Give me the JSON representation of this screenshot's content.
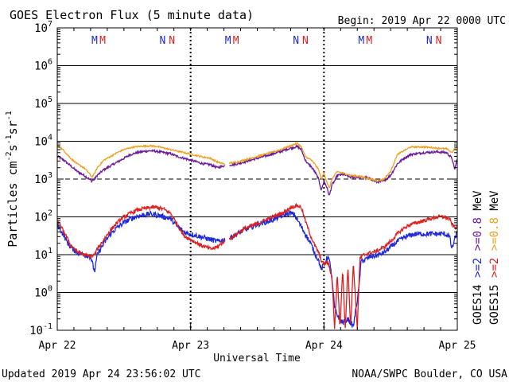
{
  "chart_data": {
    "type": "line",
    "title": "GOES Electron Flux (5 minute data)",
    "begin_label": "Begin: 2019 Apr 22 0000 UTC",
    "xlabel": "Universal Time",
    "ylabel": "Particles cm⁻²s⁻¹sr⁻¹",
    "ylabel_parts": [
      "Particles cm",
      "-2",
      "s",
      "-1",
      "sr",
      "-1"
    ],
    "yscale": "log",
    "ylim_exp": [
      -1,
      7
    ],
    "y_tick_exponents": [
      -1,
      0,
      1,
      2,
      3,
      4,
      5,
      6,
      7
    ],
    "xlim_days": [
      0,
      3
    ],
    "x_ticks": [
      {
        "day": 0,
        "label": "Apr 22"
      },
      {
        "day": 1,
        "label": "Apr 23"
      },
      {
        "day": 2,
        "label": "Apr 24"
      },
      {
        "day": 3,
        "label": "Apr 25"
      }
    ],
    "threshold_lines": [
      {
        "exp": 3,
        "style": "dashed"
      },
      {
        "exp": 2,
        "style": "solid"
      }
    ],
    "grid": true,
    "markers": [
      {
        "day": 0.28,
        "text": "M",
        "color": "#1e2adc"
      },
      {
        "day": 0.34,
        "text": "M",
        "color": "#e01e1e"
      },
      {
        "day": 0.79,
        "text": "N",
        "color": "#1e2adc"
      },
      {
        "day": 0.86,
        "text": "N",
        "color": "#e01e1e"
      },
      {
        "day": 1.28,
        "text": "M",
        "color": "#1e2adc"
      },
      {
        "day": 1.34,
        "text": "M",
        "color": "#e01e1e"
      },
      {
        "day": 1.79,
        "text": "N",
        "color": "#1e2adc"
      },
      {
        "day": 1.86,
        "text": "N",
        "color": "#e01e1e"
      },
      {
        "day": 2.28,
        "text": "M",
        "color": "#1e2adc"
      },
      {
        "day": 2.34,
        "text": "M",
        "color": "#e01e1e"
      },
      {
        "day": 2.79,
        "text": "N",
        "color": "#1e2adc"
      },
      {
        "day": 2.86,
        "text": "N",
        "color": "#e01e1e"
      }
    ],
    "legend": {
      "placement": "right",
      "rows": [
        {
          "sat": "GOES14",
          "items": [
            {
              "text": ">=2",
              "color": "#1e2adc"
            },
            {
              "text": ">=0.8",
              "color": "#6a1a9a"
            }
          ],
          "unit": "MeV"
        },
        {
          "sat": "GOES15",
          "items": [
            {
              "text": ">=2",
              "color": "#e01e1e"
            },
            {
              "text": ">=0.8",
              "color": "#f0a020"
            }
          ],
          "unit": "MeV"
        }
      ]
    },
    "series": [
      {
        "name": "GOES14 >=0.8 MeV",
        "color": "#6a1a9a",
        "noise": 0.03,
        "points": [
          [
            0,
            3.6
          ],
          [
            0.05,
            3.5
          ],
          [
            0.1,
            3.35
          ],
          [
            0.15,
            3.2
          ],
          [
            0.2,
            3.1
          ],
          [
            0.24,
            3.0
          ],
          [
            0.26,
            2.95
          ],
          [
            0.28,
            3.0
          ],
          [
            0.3,
            3.1
          ],
          [
            0.35,
            3.25
          ],
          [
            0.4,
            3.35
          ],
          [
            0.45,
            3.45
          ],
          [
            0.5,
            3.55
          ],
          [
            0.55,
            3.65
          ],
          [
            0.6,
            3.7
          ],
          [
            0.65,
            3.73
          ],
          [
            0.7,
            3.75
          ],
          [
            0.75,
            3.73
          ],
          [
            0.8,
            3.7
          ],
          [
            0.85,
            3.67
          ],
          [
            0.9,
            3.6
          ],
          [
            0.95,
            3.55
          ],
          [
            1.0,
            3.5
          ],
          [
            1.05,
            3.45
          ],
          [
            1.1,
            3.4
          ],
          [
            1.15,
            3.38
          ],
          [
            1.2,
            3.3
          ],
          [
            1.25,
            3.35
          ],
          [
            1.35,
            3.4
          ],
          [
            1.45,
            3.5
          ],
          [
            1.55,
            3.6
          ],
          [
            1.65,
            3.7
          ],
          [
            1.75,
            3.82
          ],
          [
            1.8,
            3.86
          ],
          [
            1.83,
            3.78
          ],
          [
            1.86,
            3.5
          ],
          [
            1.88,
            3.4
          ],
          [
            1.9,
            3.35
          ],
          [
            1.93,
            3.2
          ],
          [
            1.96,
            3.0
          ],
          [
            1.98,
            2.7
          ],
          [
            2.0,
            2.95
          ],
          [
            2.02,
            2.8
          ],
          [
            2.04,
            2.55
          ],
          [
            2.06,
            2.85
          ],
          [
            2.08,
            2.95
          ],
          [
            2.1,
            3.1
          ],
          [
            2.15,
            3.12
          ],
          [
            2.2,
            3.05
          ],
          [
            2.3,
            3.05
          ],
          [
            2.35,
            3.0
          ],
          [
            2.4,
            2.92
          ],
          [
            2.45,
            2.95
          ],
          [
            2.5,
            3.1
          ],
          [
            2.55,
            3.4
          ],
          [
            2.6,
            3.55
          ],
          [
            2.65,
            3.65
          ],
          [
            2.75,
            3.7
          ],
          [
            2.85,
            3.72
          ],
          [
            2.92,
            3.7
          ],
          [
            2.96,
            3.55
          ],
          [
            2.98,
            3.25
          ],
          [
            3.0,
            3.55
          ]
        ],
        "gaps": [
          [
            1.26,
            1.29
          ]
        ]
      },
      {
        "name": "GOES15 >=0.8 MeV",
        "color": "#f0a020",
        "noise": 0.02,
        "points": [
          [
            0,
            3.9
          ],
          [
            0.05,
            3.75
          ],
          [
            0.1,
            3.55
          ],
          [
            0.15,
            3.4
          ],
          [
            0.2,
            3.3
          ],
          [
            0.24,
            3.15
          ],
          [
            0.26,
            3.05
          ],
          [
            0.28,
            3.15
          ],
          [
            0.3,
            3.3
          ],
          [
            0.35,
            3.5
          ],
          [
            0.4,
            3.6
          ],
          [
            0.45,
            3.7
          ],
          [
            0.5,
            3.78
          ],
          [
            0.55,
            3.83
          ],
          [
            0.6,
            3.86
          ],
          [
            0.65,
            3.87
          ],
          [
            0.7,
            3.88
          ],
          [
            0.75,
            3.86
          ],
          [
            0.8,
            3.82
          ],
          [
            0.85,
            3.78
          ],
          [
            0.9,
            3.74
          ],
          [
            0.95,
            3.7
          ],
          [
            1.0,
            3.66
          ],
          [
            1.05,
            3.62
          ],
          [
            1.1,
            3.58
          ],
          [
            1.15,
            3.55
          ],
          [
            1.2,
            3.45
          ],
          [
            1.25,
            3.4
          ],
          [
            1.35,
            3.45
          ],
          [
            1.45,
            3.55
          ],
          [
            1.55,
            3.65
          ],
          [
            1.65,
            3.75
          ],
          [
            1.75,
            3.88
          ],
          [
            1.8,
            3.95
          ],
          [
            1.83,
            3.85
          ],
          [
            1.86,
            3.6
          ],
          [
            1.88,
            3.55
          ],
          [
            1.9,
            3.52
          ],
          [
            1.93,
            3.4
          ],
          [
            1.96,
            3.25
          ],
          [
            1.98,
            3.0
          ],
          [
            2.0,
            3.15
          ],
          [
            2.02,
            2.95
          ],
          [
            2.04,
            2.75
          ],
          [
            2.06,
            3.0
          ],
          [
            2.08,
            3.1
          ],
          [
            2.1,
            3.2
          ],
          [
            2.15,
            3.15
          ],
          [
            2.2,
            3.1
          ],
          [
            2.3,
            3.05
          ],
          [
            2.35,
            3.0
          ],
          [
            2.4,
            2.95
          ],
          [
            2.45,
            3.0
          ],
          [
            2.5,
            3.2
          ],
          [
            2.55,
            3.65
          ],
          [
            2.6,
            3.75
          ],
          [
            2.65,
            3.85
          ],
          [
            2.75,
            3.85
          ],
          [
            2.85,
            3.82
          ],
          [
            2.92,
            3.8
          ],
          [
            2.96,
            3.7
          ],
          [
            2.98,
            3.8
          ],
          [
            3.0,
            3.85
          ]
        ],
        "gaps": [
          [
            1.26,
            1.29
          ]
        ]
      },
      {
        "name": "GOES14 >=2 MeV",
        "color": "#1e2adc",
        "noise": 0.07,
        "points": [
          [
            0,
            1.8
          ],
          [
            0.05,
            1.5
          ],
          [
            0.08,
            1.3
          ],
          [
            0.1,
            1.2
          ],
          [
            0.15,
            1.05
          ],
          [
            0.2,
            1.0
          ],
          [
            0.25,
            0.95
          ],
          [
            0.28,
            0.55
          ],
          [
            0.3,
            1.0
          ],
          [
            0.35,
            1.3
          ],
          [
            0.4,
            1.55
          ],
          [
            0.45,
            1.72
          ],
          [
            0.5,
            1.85
          ],
          [
            0.55,
            1.95
          ],
          [
            0.6,
            2.02
          ],
          [
            0.65,
            2.05
          ],
          [
            0.7,
            2.08
          ],
          [
            0.75,
            2.05
          ],
          [
            0.8,
            2.0
          ],
          [
            0.85,
            1.95
          ],
          [
            0.9,
            1.75
          ],
          [
            0.95,
            1.6
          ],
          [
            1.0,
            1.55
          ],
          [
            1.05,
            1.5
          ],
          [
            1.1,
            1.45
          ],
          [
            1.15,
            1.4
          ],
          [
            1.2,
            1.35
          ],
          [
            1.25,
            1.4
          ],
          [
            1.3,
            1.45
          ],
          [
            1.35,
            1.55
          ],
          [
            1.4,
            1.65
          ],
          [
            1.45,
            1.72
          ],
          [
            1.5,
            1.8
          ],
          [
            1.55,
            1.85
          ],
          [
            1.6,
            1.9
          ],
          [
            1.65,
            1.98
          ],
          [
            1.7,
            2.05
          ],
          [
            1.75,
            2.1
          ],
          [
            1.78,
            2.05
          ],
          [
            1.82,
            1.8
          ],
          [
            1.86,
            1.55
          ],
          [
            1.9,
            1.3
          ],
          [
            1.93,
            1.05
          ],
          [
            1.96,
            0.85
          ],
          [
            1.98,
            0.6
          ],
          [
            2.0,
            0.75
          ],
          [
            2.03,
            0.95
          ],
          [
            2.05,
            0.7
          ],
          [
            2.08,
            -0.4
          ],
          [
            2.1,
            -0.6
          ],
          [
            2.14,
            -0.8
          ],
          [
            2.18,
            -0.7
          ],
          [
            2.22,
            -0.9
          ],
          [
            2.26,
            0.05
          ],
          [
            2.28,
            0.85
          ],
          [
            2.3,
            0.85
          ],
          [
            2.35,
            0.95
          ],
          [
            2.4,
            0.98
          ],
          [
            2.45,
            1.05
          ],
          [
            2.5,
            1.2
          ],
          [
            2.55,
            1.35
          ],
          [
            2.6,
            1.45
          ],
          [
            2.65,
            1.52
          ],
          [
            2.7,
            1.55
          ],
          [
            2.75,
            1.55
          ],
          [
            2.8,
            1.55
          ],
          [
            2.85,
            1.55
          ],
          [
            2.9,
            1.55
          ],
          [
            2.94,
            1.5
          ],
          [
            2.96,
            1.15
          ],
          [
            2.98,
            1.4
          ],
          [
            3.0,
            1.6
          ]
        ],
        "gaps": [
          [
            1.26,
            1.29
          ]
        ]
      },
      {
        "name": "GOES15 >=2 MeV",
        "color": "#e01e1e",
        "noise": 0.05,
        "points": [
          [
            0,
            1.9
          ],
          [
            0.05,
            1.6
          ],
          [
            0.08,
            1.4
          ],
          [
            0.1,
            1.25
          ],
          [
            0.15,
            1.08
          ],
          [
            0.2,
            1.0
          ],
          [
            0.25,
            0.95
          ],
          [
            0.28,
            1.0
          ],
          [
            0.3,
            1.15
          ],
          [
            0.35,
            1.4
          ],
          [
            0.4,
            1.65
          ],
          [
            0.45,
            1.85
          ],
          [
            0.5,
            2.0
          ],
          [
            0.55,
            2.1
          ],
          [
            0.6,
            2.18
          ],
          [
            0.65,
            2.22
          ],
          [
            0.7,
            2.25
          ],
          [
            0.75,
            2.25
          ],
          [
            0.8,
            2.2
          ],
          [
            0.85,
            2.1
          ],
          [
            0.9,
            1.8
          ],
          [
            0.95,
            1.5
          ],
          [
            1.0,
            1.4
          ],
          [
            1.05,
            1.3
          ],
          [
            1.1,
            1.22
          ],
          [
            1.15,
            1.15
          ],
          [
            1.2,
            1.2
          ],
          [
            1.25,
            1.35
          ],
          [
            1.3,
            1.45
          ],
          [
            1.35,
            1.55
          ],
          [
            1.4,
            1.68
          ],
          [
            1.45,
            1.75
          ],
          [
            1.5,
            1.82
          ],
          [
            1.55,
            1.9
          ],
          [
            1.6,
            1.98
          ],
          [
            1.65,
            2.05
          ],
          [
            1.7,
            2.12
          ],
          [
            1.75,
            2.25
          ],
          [
            1.8,
            2.3
          ],
          [
            1.83,
            2.25
          ],
          [
            1.86,
            1.9
          ],
          [
            1.9,
            1.5
          ],
          [
            1.93,
            1.25
          ],
          [
            1.96,
            1.05
          ],
          [
            1.98,
            0.85
          ],
          [
            2.0,
            0.75
          ],
          [
            2.03,
            0.8
          ],
          [
            2.06,
            0.4
          ],
          [
            2.08,
            -0.95
          ],
          [
            2.1,
            0.5
          ],
          [
            2.12,
            -0.95
          ],
          [
            2.14,
            0.6
          ],
          [
            2.16,
            -0.95
          ],
          [
            2.18,
            0.7
          ],
          [
            2.2,
            -0.95
          ],
          [
            2.22,
            0.8
          ],
          [
            2.25,
            -0.95
          ],
          [
            2.27,
            0.9
          ],
          [
            2.3,
            1.0
          ],
          [
            2.35,
            1.05
          ],
          [
            2.4,
            1.1
          ],
          [
            2.45,
            1.2
          ],
          [
            2.5,
            1.35
          ],
          [
            2.55,
            1.55
          ],
          [
            2.6,
            1.7
          ],
          [
            2.65,
            1.8
          ],
          [
            2.7,
            1.85
          ],
          [
            2.75,
            1.9
          ],
          [
            2.8,
            1.95
          ],
          [
            2.85,
            2.0
          ],
          [
            2.9,
            2.0
          ],
          [
            2.94,
            1.95
          ],
          [
            2.97,
            1.75
          ],
          [
            3.0,
            1.7
          ]
        ],
        "gaps": [
          [
            1.26,
            1.29
          ]
        ]
      }
    ]
  },
  "footer": {
    "updated": "Updated 2019 Apr 24 23:56:02 UTC",
    "credit": "NOAA/SWPC Boulder, CO USA"
  }
}
